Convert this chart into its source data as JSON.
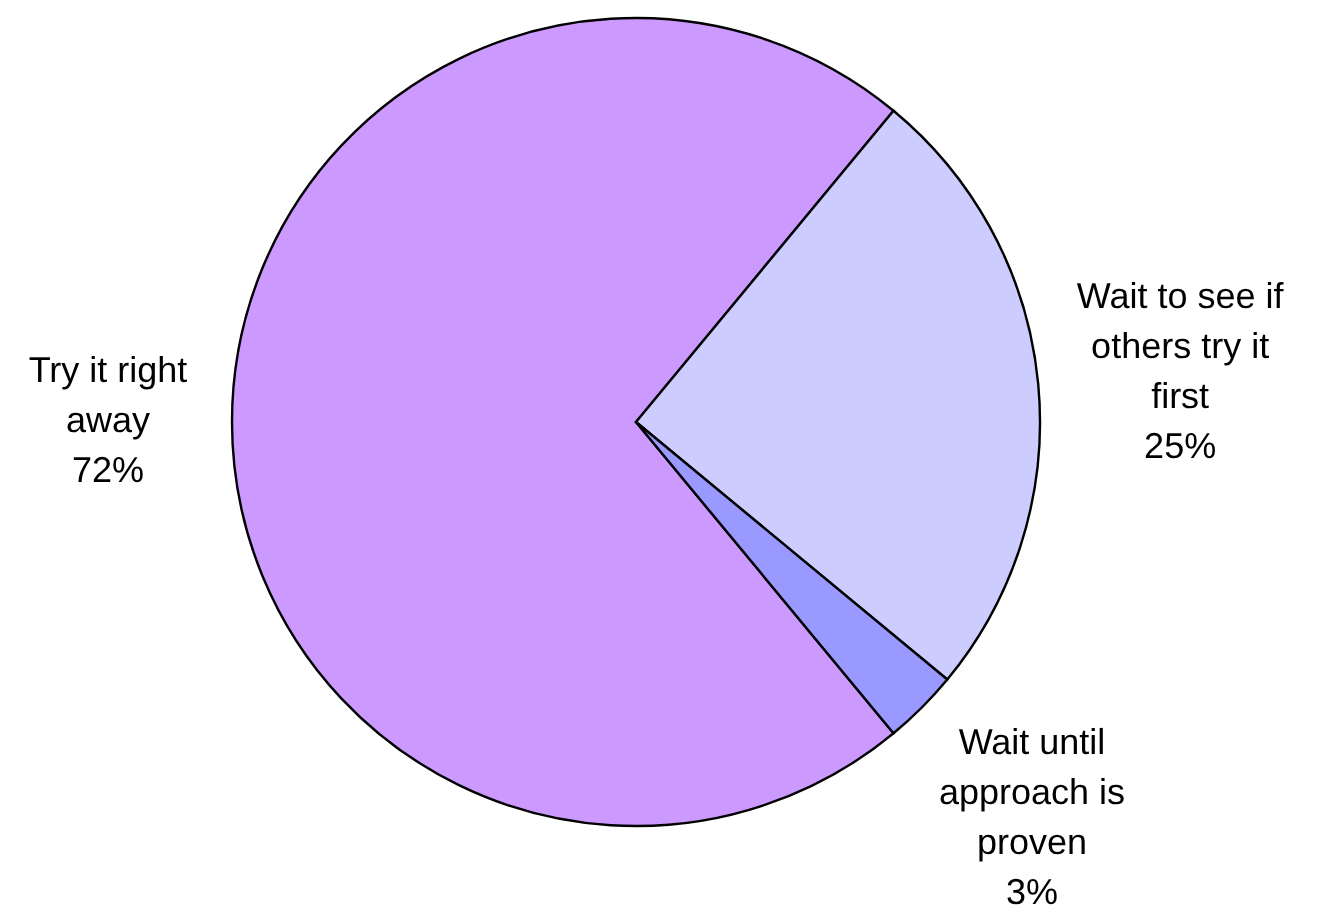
{
  "chart_data": {
    "type": "pie",
    "categories": [
      "Try it right away",
      "Wait to see if others try it first",
      "Wait until approach is proven"
    ],
    "values": [
      72,
      25,
      3
    ],
    "colors": [
      "#cc99ff",
      "#ccccff",
      "#9999ff"
    ],
    "value_labels": [
      "72%",
      "25%",
      "3%"
    ]
  }
}
